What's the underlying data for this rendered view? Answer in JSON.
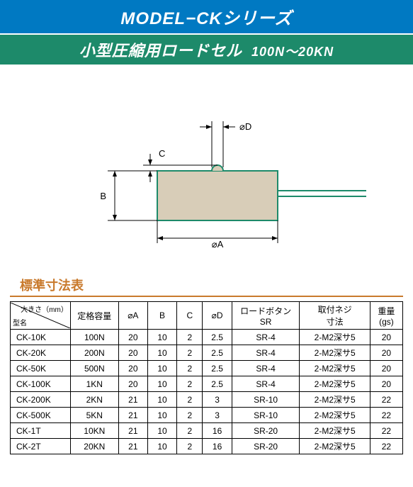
{
  "colors": {
    "header1_bg": "#0079c2",
    "header1_fg": "#ffffff",
    "header2_bg": "#1d8a6a",
    "header2_fg": "#ffffff",
    "caption_fg": "#c97a2d",
    "diagram_body": "#d8cdb8",
    "diagram_stroke": "#1d8a6a",
    "dim_line": "#000000"
  },
  "header": {
    "title": "MODEL−CKシリーズ",
    "subtitle": "小型圧縮用ロードセル",
    "range": "100N〜20KN"
  },
  "diagram": {
    "labels": {
      "A": "⌀A",
      "B": "B",
      "C": "C",
      "D": "⌀D"
    }
  },
  "table": {
    "caption": "標準寸法表",
    "diag_top": "大きさ（mm）",
    "diag_bottom": "型名",
    "columns": [
      "定格容量",
      "⌀A",
      "B",
      "C",
      "⌀D",
      "ロードボタン\nSR",
      "取付ネジ\n寸法",
      "重量\n(gs)"
    ],
    "rows": [
      [
        "CK-10K",
        "100N",
        "20",
        "10",
        "2",
        "2.5",
        "SR-4",
        "2-M2深サ5",
        "20"
      ],
      [
        "CK-20K",
        "200N",
        "20",
        "10",
        "2",
        "2.5",
        "SR-4",
        "2-M2深サ5",
        "20"
      ],
      [
        "CK-50K",
        "500N",
        "20",
        "10",
        "2",
        "2.5",
        "SR-4",
        "2-M2深サ5",
        "20"
      ],
      [
        "CK-100K",
        "1KN",
        "20",
        "10",
        "2",
        "2.5",
        "SR-4",
        "2-M2深サ5",
        "20"
      ],
      [
        "CK-200K",
        "2KN",
        "21",
        "10",
        "2",
        "3",
        "SR-10",
        "2-M2深サ5",
        "22"
      ],
      [
        "CK-500K",
        "5KN",
        "21",
        "10",
        "2",
        "3",
        "SR-10",
        "2-M2深サ5",
        "22"
      ],
      [
        "CK-1T",
        "10KN",
        "21",
        "10",
        "2",
        "16",
        "SR-20",
        "2-M2深サ5",
        "22"
      ],
      [
        "CK-2T",
        "20KN",
        "21",
        "10",
        "2",
        "16",
        "SR-20",
        "2-M2深サ5",
        "22"
      ]
    ]
  }
}
